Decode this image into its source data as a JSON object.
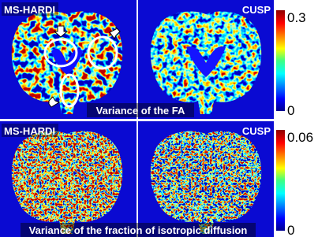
{
  "panels": [
    {
      "left_label": "MS-HARDI",
      "right_label": "CUSP",
      "colorbar": {
        "max": 0.3,
        "min": 0
      },
      "caption": "Variance of the FA"
    },
    {
      "left_label": "MS-HARDI",
      "right_label": "CUSP",
      "colorbar": {
        "max": 0.06,
        "min": 0
      },
      "caption": "Variance of the fraction of isotropic diffusion"
    }
  ]
}
